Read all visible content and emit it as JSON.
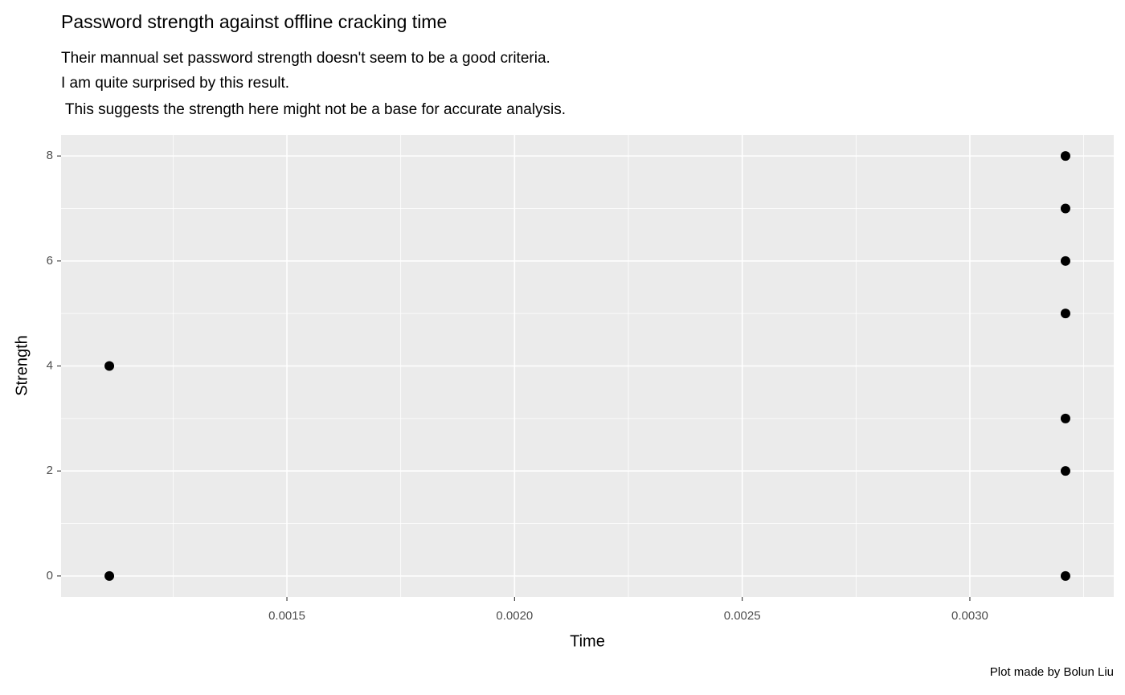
{
  "chart_data": {
    "type": "scatter",
    "title": "Password strength against offline cracking time",
    "subtitle": [
      "Their mannual set password strength doesn't seem to be a good criteria.",
      "I am quite surprised by this result.",
      " This suggests the strength here might not be a base for accurate analysis."
    ],
    "x_label": "Time",
    "y_label": "Strength",
    "caption": "Plot made by Bolun Liu",
    "series": [
      {
        "color": "#000000",
        "x": [
          0.00111,
          0.00111,
          0.00321,
          0.00321,
          0.00321,
          0.00321,
          0.00321,
          0.00321,
          0.00321
        ],
        "values": [
          4,
          0,
          8,
          7,
          6,
          5,
          3,
          2,
          0
        ]
      }
    ],
    "xlim": [
      0.001004,
      0.003316
    ],
    "ylim": [
      -0.4,
      8.4
    ],
    "xticks": [
      {
        "value": 0.0015,
        "label": "0.0015"
      },
      {
        "value": 0.002,
        "label": "0.0020"
      },
      {
        "value": 0.0025,
        "label": "0.0025"
      },
      {
        "value": 0.003,
        "label": "0.0030"
      }
    ],
    "yticks": [
      0,
      2,
      4,
      6,
      8
    ],
    "grid": true
  }
}
